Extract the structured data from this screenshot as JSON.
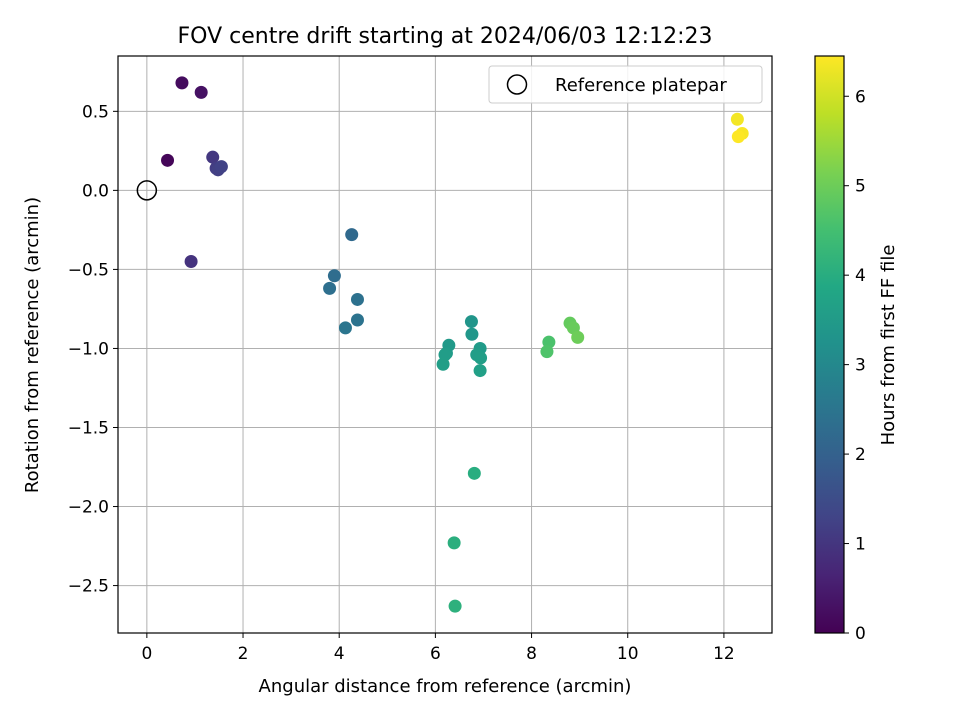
{
  "chart_data": {
    "type": "scatter",
    "title": "FOV centre drift starting at 2024/06/03 12:12:23",
    "xlabel": "Angular distance from reference (arcmin)",
    "ylabel": "Rotation from reference (arcmin)",
    "xlim": [
      -0.6,
      13.0
    ],
    "ylim": [
      -2.8,
      0.85
    ],
    "xticks": [
      0,
      2,
      4,
      6,
      8,
      10,
      12
    ],
    "xtick_labels": [
      "0",
      "2",
      "4",
      "6",
      "8",
      "10",
      "12"
    ],
    "yticks": [
      0.5,
      0.0,
      -0.5,
      -1.0,
      -1.5,
      -2.0,
      -2.5
    ],
    "ytick_labels": [
      "0.5",
      "0.0",
      "−0.5",
      "−1.0",
      "−1.5",
      "−2.0",
      "−2.5"
    ],
    "grid": true,
    "legend": {
      "position": "top-right",
      "entries": [
        "Reference platepar"
      ]
    },
    "reference_point": {
      "x": 0.0,
      "y": 0.0,
      "label": "Reference platepar"
    },
    "colorbar": {
      "label": "Hours from first FF file",
      "colormap": "viridis",
      "range": [
        0,
        6.45
      ],
      "ticks": [
        0,
        1,
        2,
        3,
        4,
        5,
        6
      ],
      "tick_labels": [
        "0",
        "1",
        "2",
        "3",
        "4",
        "5",
        "6"
      ]
    },
    "points": [
      {
        "x": 0.43,
        "y": 0.19,
        "hours": 0.1
      },
      {
        "x": 0.73,
        "y": 0.68,
        "hours": 0.2
      },
      {
        "x": 1.13,
        "y": 0.62,
        "hours": 0.3
      },
      {
        "x": 0.92,
        "y": -0.45,
        "hours": 0.95
      },
      {
        "x": 1.37,
        "y": 0.21,
        "hours": 1.05
      },
      {
        "x": 1.44,
        "y": 0.14,
        "hours": 1.15
      },
      {
        "x": 1.48,
        "y": 0.13,
        "hours": 1.2
      },
      {
        "x": 1.55,
        "y": 0.15,
        "hours": 1.25
      },
      {
        "x": 4.26,
        "y": -0.28,
        "hours": 2.2
      },
      {
        "x": 3.9,
        "y": -0.54,
        "hours": 2.3
      },
      {
        "x": 3.8,
        "y": -0.62,
        "hours": 2.35
      },
      {
        "x": 4.38,
        "y": -0.69,
        "hours": 2.4
      },
      {
        "x": 4.38,
        "y": -0.82,
        "hours": 2.45
      },
      {
        "x": 4.13,
        "y": -0.87,
        "hours": 2.5
      },
      {
        "x": 6.75,
        "y": -0.83,
        "hours": 3.35
      },
      {
        "x": 6.76,
        "y": -0.91,
        "hours": 3.4
      },
      {
        "x": 6.28,
        "y": -0.98,
        "hours": 3.45
      },
      {
        "x": 6.93,
        "y": -1.0,
        "hours": 3.5
      },
      {
        "x": 6.23,
        "y": -1.03,
        "hours": 3.5
      },
      {
        "x": 6.2,
        "y": -1.04,
        "hours": 3.55
      },
      {
        "x": 6.86,
        "y": -1.04,
        "hours": 3.55
      },
      {
        "x": 6.94,
        "y": -1.06,
        "hours": 3.6
      },
      {
        "x": 6.16,
        "y": -1.1,
        "hours": 3.6
      },
      {
        "x": 6.93,
        "y": -1.14,
        "hours": 3.65
      },
      {
        "x": 6.81,
        "y": -1.79,
        "hours": 4.0
      },
      {
        "x": 6.39,
        "y": -2.23,
        "hours": 4.05
      },
      {
        "x": 6.41,
        "y": -2.63,
        "hours": 4.1
      },
      {
        "x": 8.36,
        "y": -0.96,
        "hours": 4.6
      },
      {
        "x": 8.32,
        "y": -1.02,
        "hours": 4.65
      },
      {
        "x": 8.8,
        "y": -0.84,
        "hours": 4.9
      },
      {
        "x": 8.87,
        "y": -0.87,
        "hours": 4.95
      },
      {
        "x": 8.96,
        "y": -0.93,
        "hours": 5.0
      },
      {
        "x": 12.28,
        "y": 0.45,
        "hours": 6.35
      },
      {
        "x": 12.38,
        "y": 0.36,
        "hours": 6.4
      },
      {
        "x": 12.3,
        "y": 0.34,
        "hours": 6.45
      }
    ]
  }
}
